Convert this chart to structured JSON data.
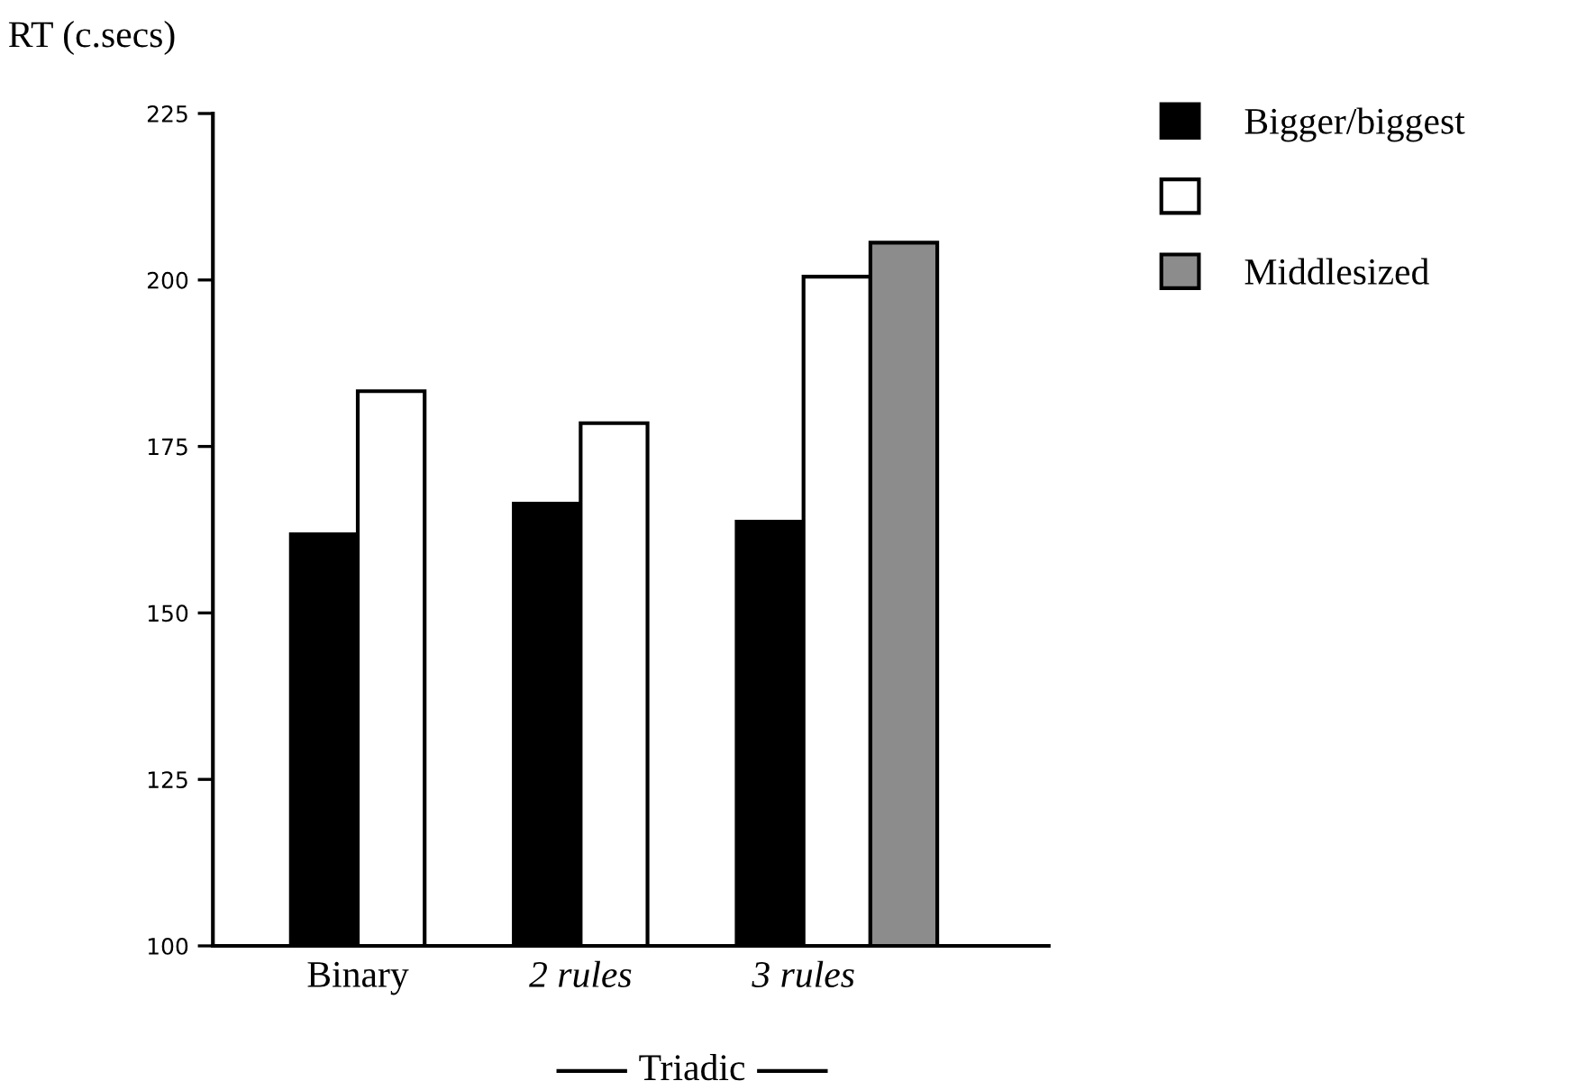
{
  "chart_data": {
    "type": "bar",
    "ylabel": "RT (c.secs)",
    "categories": [
      "Binary",
      "2 rules",
      "3 rules"
    ],
    "series": [
      {
        "name": "Bigger/biggest",
        "color": "#000000",
        "values": [
          161.8,
          166.4,
          163.7
        ]
      },
      {
        "color": "#ffffff",
        "values": [
          183.3,
          178.5,
          200.5
        ]
      },
      {
        "name": "Middlesized",
        "color": "#8c8c8c",
        "values": [
          null,
          null,
          205.6
        ]
      }
    ],
    "ylim": [
      100,
      225
    ],
    "yticks": [
      100,
      125,
      150,
      175,
      200,
      225
    ],
    "annotations": [
      "Triadic"
    ],
    "grid": false,
    "legend": "top right"
  }
}
